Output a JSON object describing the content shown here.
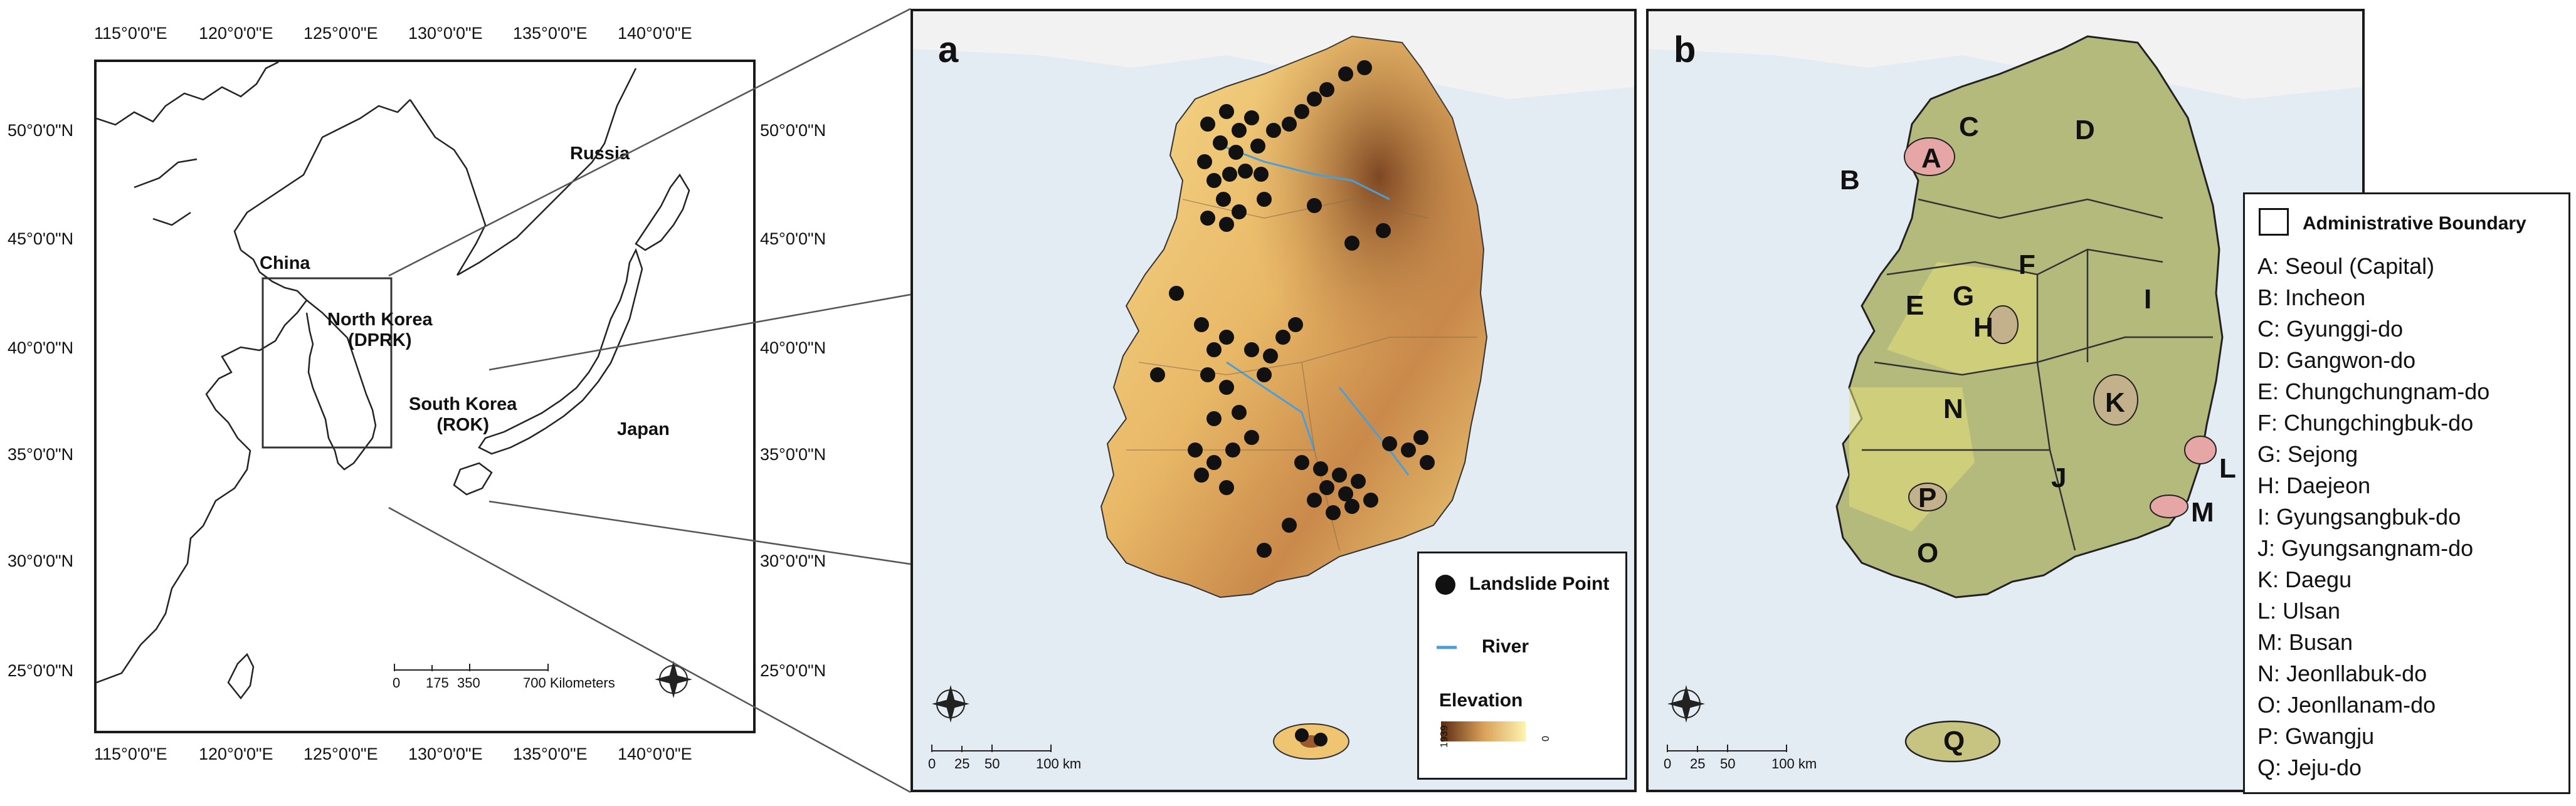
{
  "overview": {
    "top_ticks": [
      "115°0'0\"E",
      "120°0'0\"E",
      "125°0'0\"E",
      "130°0'0\"E",
      "135°0'0\"E",
      "140°0'0\"E"
    ],
    "bottom_ticks": [
      "115°0'0\"E",
      "120°0'0\"E",
      "125°0'0\"E",
      "130°0'0\"E",
      "135°0'0\"E",
      "140°0'0\"E"
    ],
    "left_ticks": [
      "50°0'0\"N",
      "45°0'0\"N",
      "40°0'0\"N",
      "35°0'0\"N",
      "30°0'0\"N",
      "25°0'0\"N"
    ],
    "right_ticks": [
      "50°0'0\"N",
      "45°0'0\"N",
      "40°0'0\"N",
      "35°0'0\"N",
      "30°0'0\"N",
      "25°0'0\"N"
    ],
    "labels": {
      "russia": "Russia",
      "china": "China",
      "north_korea": "North Korea\n(DPRK)",
      "south_korea": "South Korea\n(ROK)",
      "japan": "Japan"
    },
    "scale": {
      "ticks": [
        "0",
        "175",
        "350",
        "700 Kilometers"
      ]
    }
  },
  "panel_a": {
    "letter": "a",
    "scale": {
      "ticks": [
        "0",
        "25",
        "50",
        "100 km"
      ]
    },
    "legend": {
      "landslide_point": "Landslide Point",
      "river": "River",
      "elevation": "Elevation",
      "elev_high": "1939",
      "elev_low": "0"
    },
    "colors": {
      "river": "#4a9fd8",
      "elev_low": "#fdf3b0",
      "elev_mid": "#e0a84a",
      "elev_high": "#5a2a12"
    }
  },
  "panel_b": {
    "letter": "b",
    "scale": {
      "ticks": [
        "0",
        "25",
        "50",
        "100 km"
      ]
    },
    "map_letters": [
      "A",
      "B",
      "C",
      "D",
      "E",
      "F",
      "G",
      "H",
      "I",
      "J",
      "K",
      "L",
      "M",
      "N",
      "O",
      "P",
      "Q"
    ],
    "legend": {
      "title": "Administrative Boundary",
      "items": [
        "A: Seoul (Capital)",
        "B: Incheon",
        "C: Gyunggi-do",
        "D: Gangwon-do",
        "E: Chungchungnam-do",
        "F: Chungchingbuk-do",
        "G: Sejong",
        "H: Daejeon",
        "I: Gyungsangbuk-do",
        "J: Gyungsangnam-do",
        "K: Daegu",
        "L: Ulsan",
        "M: Busan",
        "N: Jeonllabuk-do",
        "O: Jeonllanam-do",
        "P: Gwangju",
        "Q: Jeju-do"
      ]
    }
  }
}
